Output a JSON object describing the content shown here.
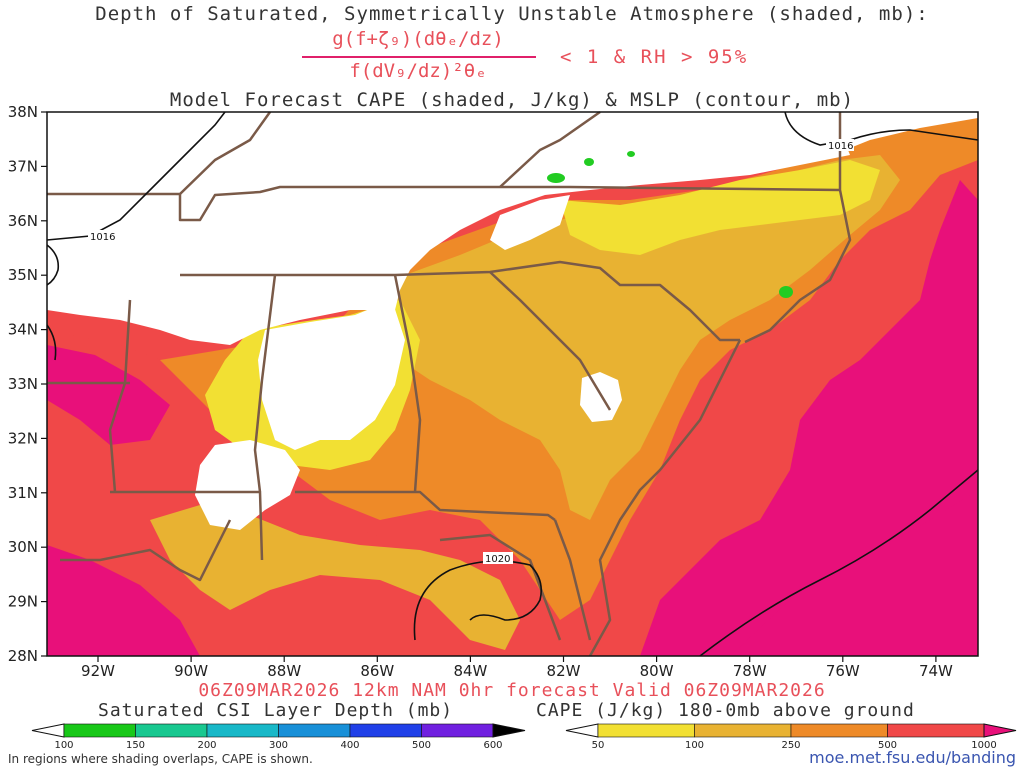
{
  "header": {
    "title_line1": "Depth of Saturated, Symmetrically Unstable Atmosphere (shaded, mb):",
    "formula_numerator": "g(f+ζ₉)(dθₑ/dz)",
    "formula_denominator": "f(dV₉/dz)²θₑ",
    "condition": "< 1 & RH > 95%",
    "title_line3": "Model Forecast CAPE (shaded, J/kg) & MSLP (contour, mb)"
  },
  "map": {
    "lat_labels": [
      "38N",
      "37N",
      "36N",
      "35N",
      "34N",
      "33N",
      "32N",
      "31N",
      "30N",
      "29N",
      "28N"
    ],
    "lon_labels": [
      "92W",
      "90W",
      "88W",
      "86W",
      "84W",
      "82W",
      "80W",
      "78W",
      "76W",
      "74W"
    ],
    "isobar_labels": [
      "1016",
      "1016",
      "1020"
    ],
    "colors": {
      "cape_50_100": "#f2e033",
      "cape_100_250": "#e8b232",
      "cape_250_500": "#ee8a28",
      "cape_500_1000": "#f04848",
      "cape_1000_plus": "#e8107a",
      "csi_100_150": "#22cc22",
      "state_borders": "#7a5a48",
      "isobars": "#111111"
    }
  },
  "footer": {
    "valid_line": "06Z09MAR2026 12km NAM 0hr forecast Valid 06Z09MAR2026",
    "csi_title": "Saturated CSI Layer Depth (mb)",
    "csi_ticks": [
      "100",
      "150",
      "200",
      "300",
      "400",
      "500",
      "600"
    ],
    "csi_colors": [
      "#ffffff",
      "#18c818",
      "#18c890",
      "#18b8c8",
      "#1890d8",
      "#2040e8",
      "#7020e0",
      "#000000"
    ],
    "cape_title": "CAPE (J/kg) 180-0mb above ground",
    "cape_ticks": [
      "50",
      "100",
      "250",
      "500",
      "1000"
    ],
    "cape_colors": [
      "#ffffff",
      "#f2e033",
      "#e8b232",
      "#ee8a28",
      "#f04848",
      "#e8107a"
    ],
    "note": "In regions where shading overlaps, CAPE is shown.",
    "url": "moe.met.fsu.edu/banding"
  }
}
